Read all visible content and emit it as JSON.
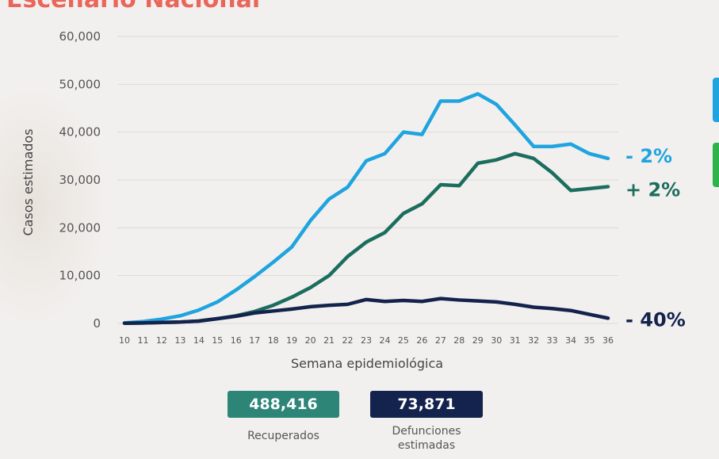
{
  "header": {
    "title_fragment": "Escenario Nacional"
  },
  "chart_data": {
    "type": "line",
    "title": "",
    "xlabel": "Semana epidemiológica",
    "ylabel": "Casos estimados",
    "ylim": [
      0,
      60000
    ],
    "y_ticks": [
      "0",
      "10,000",
      "20,000",
      "30,000",
      "40,000",
      "50,000",
      "60,000"
    ],
    "x": [
      10,
      11,
      12,
      13,
      14,
      15,
      16,
      17,
      18,
      19,
      20,
      21,
      22,
      23,
      24,
      25,
      26,
      27,
      28,
      29,
      30,
      31,
      32,
      33,
      34,
      35,
      36
    ],
    "grid": true,
    "series": [
      {
        "color": "#1fa4df",
        "end_label": "- 2%",
        "values": [
          100,
          400,
          900,
          1600,
          2800,
          4500,
          7000,
          9800,
          12800,
          16000,
          21500,
          26000,
          28500,
          34000,
          35500,
          40000,
          39500,
          46500,
          46500,
          48000,
          45800,
          41500,
          37000,
          37000,
          37500,
          35500,
          34500
        ]
      },
      {
        "color": "#1b6e5e",
        "end_label": "+ 2%",
        "values": [
          50,
          100,
          200,
          300,
          500,
          1000,
          1600,
          2500,
          3800,
          5500,
          7500,
          10000,
          14000,
          17000,
          19000,
          23000,
          25000,
          29000,
          28800,
          33500,
          34200,
          35500,
          34500,
          31500,
          27800,
          28200,
          28600
        ]
      },
      {
        "color": "#13234d",
        "end_label": "- 40%",
        "values": [
          50,
          100,
          200,
          300,
          500,
          1000,
          1500,
          2200,
          2600,
          3000,
          3500,
          3800,
          4000,
          5000,
          4600,
          4800,
          4600,
          5200,
          4900,
          4700,
          4500,
          4000,
          3400,
          3100,
          2700,
          1900,
          1100
        ]
      }
    ]
  },
  "stats": [
    {
      "value": "488,416",
      "caption": "Recuperados",
      "color": "#2d8577"
    },
    {
      "value": "73,871",
      "caption_lines": [
        "Defunciones",
        "estimadas"
      ],
      "color": "#13234d"
    }
  ],
  "legend_chips": [
    "#1fa4df",
    "#2db34a"
  ]
}
